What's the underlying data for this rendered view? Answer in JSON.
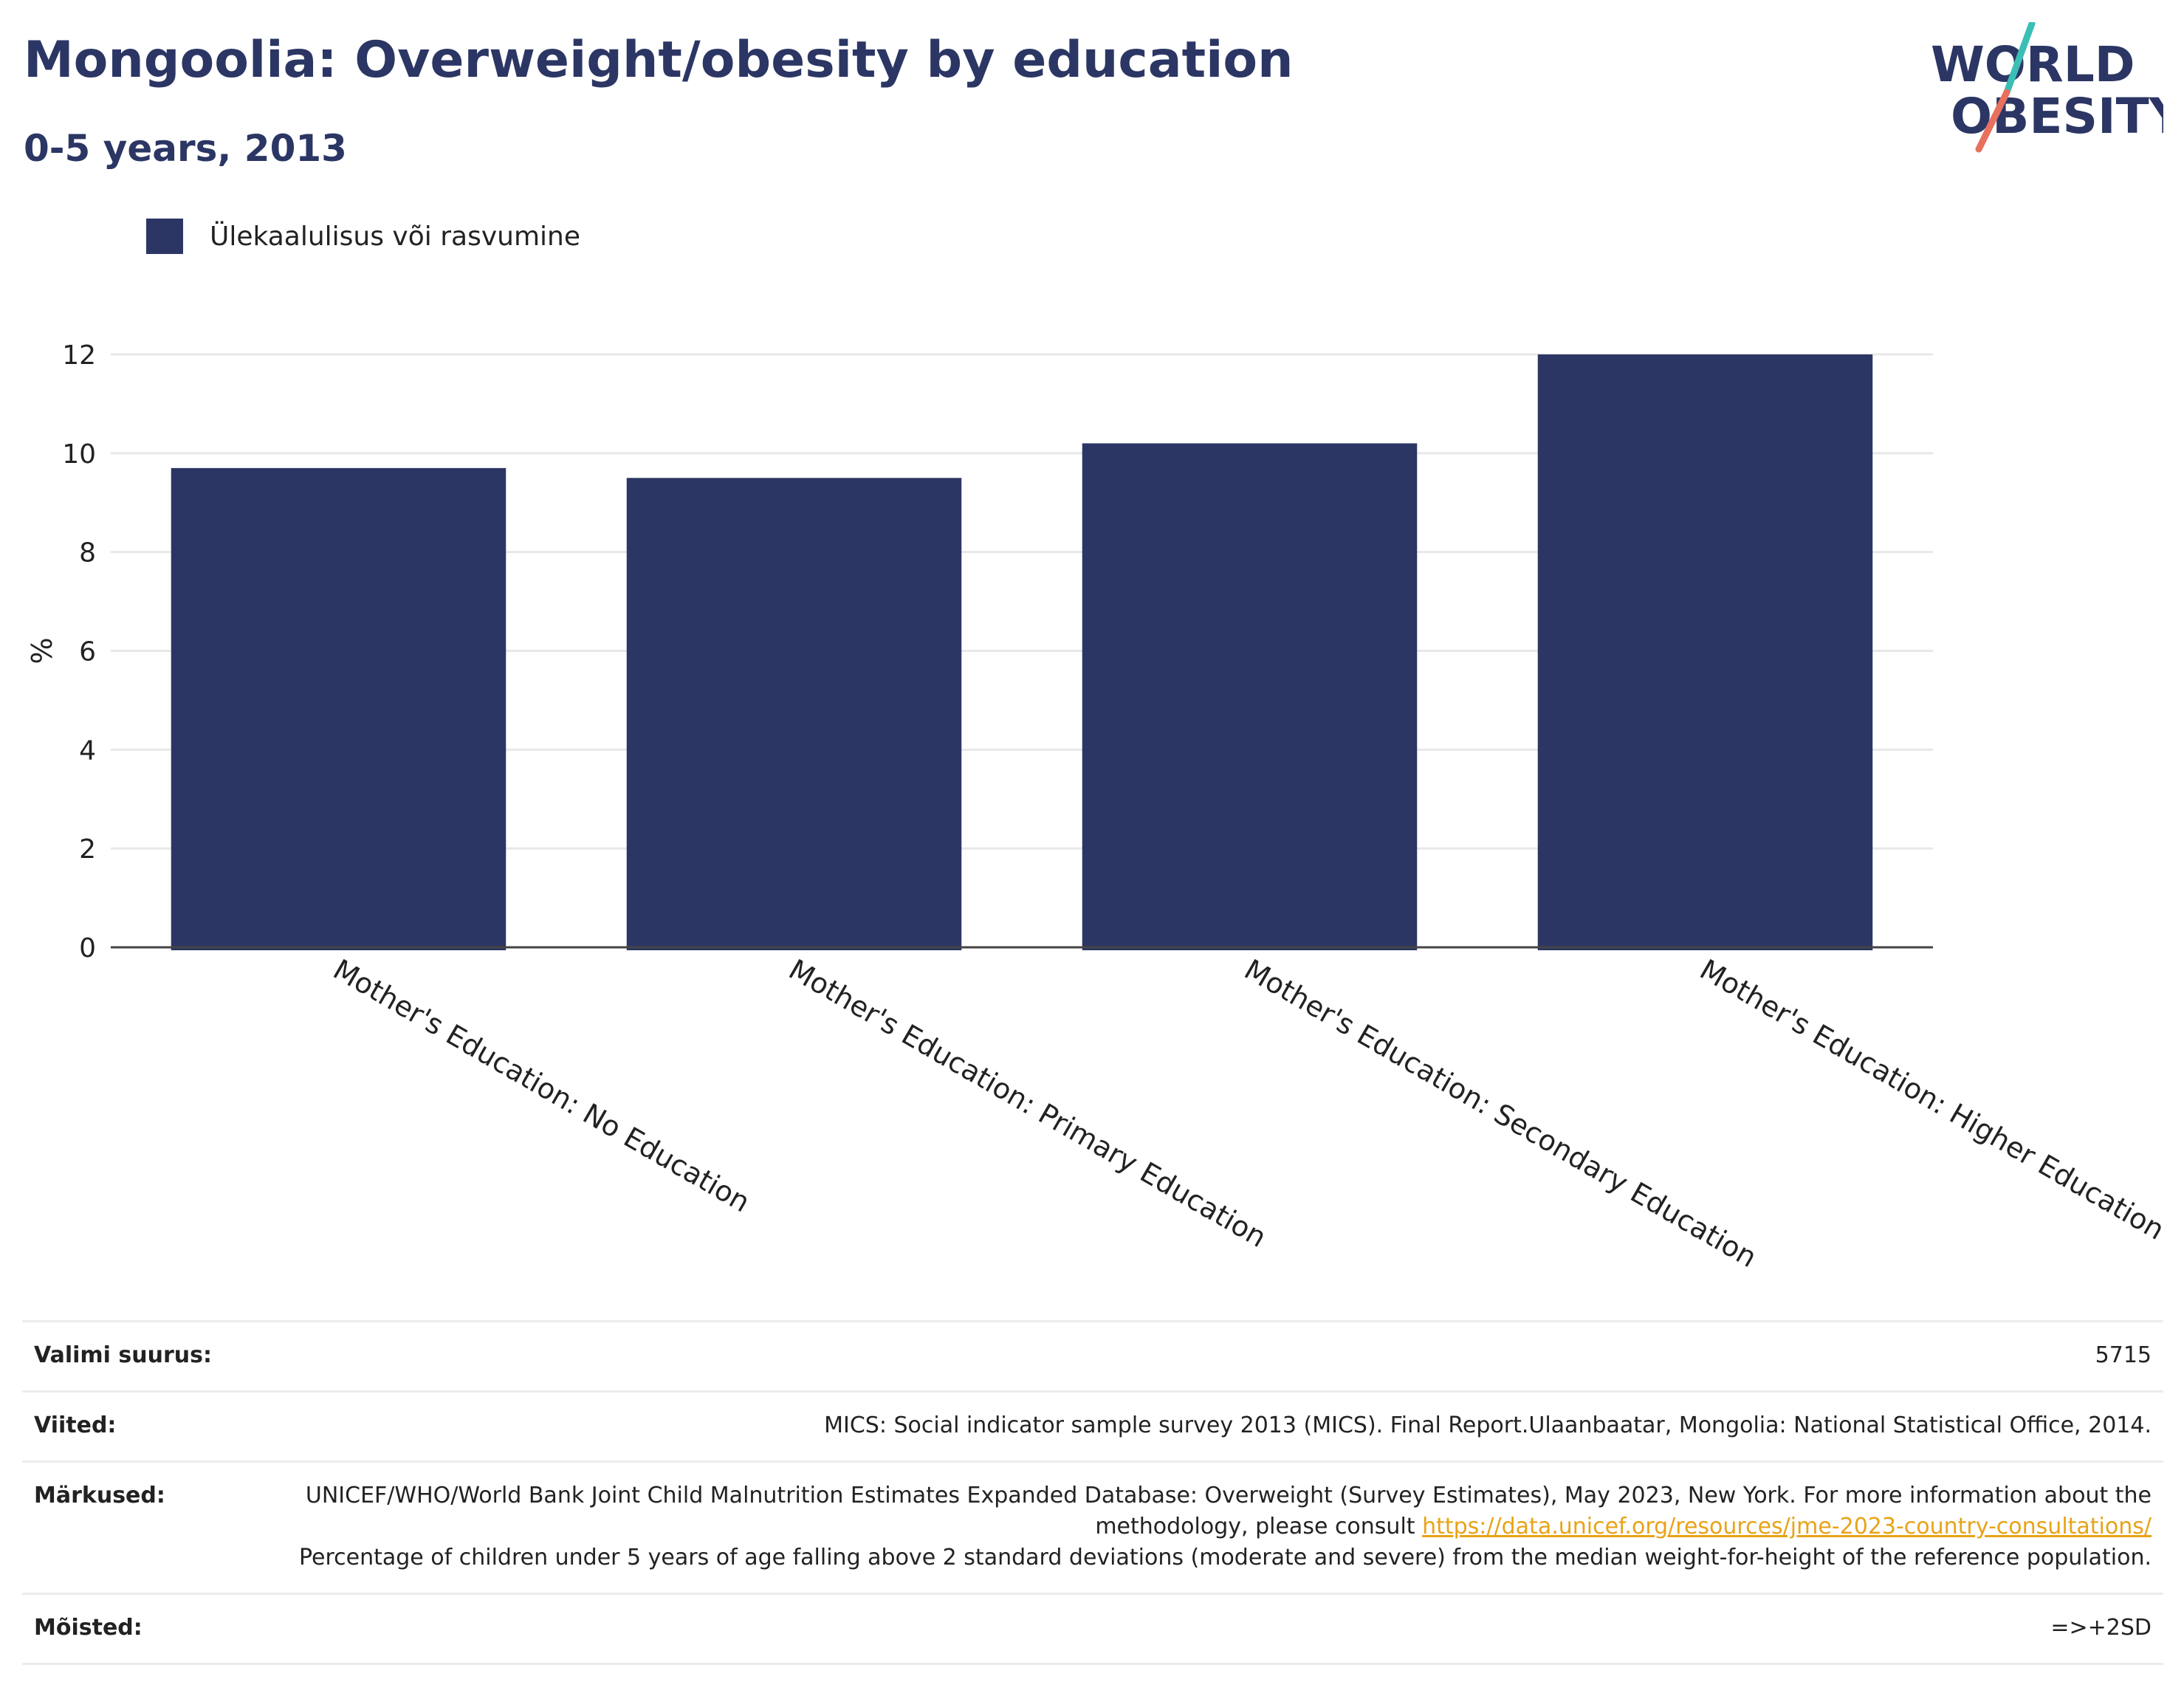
{
  "header": {
    "title": "Mongoolia: Overweight/obesity by education",
    "subtitle": "0-5 years, 2013"
  },
  "logo": {
    "line1": "WORLD",
    "line2": "OBESITY"
  },
  "legend": {
    "label": "Ülekaalulisus või rasvumine",
    "color": "#2b3664"
  },
  "chart_data": {
    "type": "bar",
    "categories": [
      "Mother's Education: No Education",
      "Mother's Education: Primary Education",
      "Mother's Education: Secondary Education",
      "Mother's Education: Higher Education"
    ],
    "series": [
      {
        "name": "Ülekaalulisus või rasvumine",
        "values": [
          9.7,
          9.5,
          10.2,
          12.0
        ]
      }
    ],
    "ylabel": "%",
    "ylim": [
      0,
      12
    ],
    "yticks": [
      0,
      2,
      4,
      6,
      8,
      10,
      12
    ],
    "grid": true,
    "legend_position": "top-left",
    "bar_color": "#2b3664"
  },
  "info": {
    "sample_size_label": "Valimi suurus:",
    "sample_size_value": "5715",
    "references_label": "Viited:",
    "references_value": "MICS: Social indicator sample survey 2013 (MICS). Final Report.Ulaanbaatar, Mongolia: National Statistical Office, 2014.",
    "notes_label": "Märkused:",
    "notes_text_1": "UNICEF/WHO/World Bank Joint Child Malnutrition Estimates Expanded Database: Overweight (Survey Estimates), May 2023, New York. For more information about the methodology, please consult",
    "notes_link": "https://data.unicef.org/resources/jme-2023-country-consultations/",
    "notes_text_2": "Percentage of children under 5 years of age falling above 2 standard deviations (moderate and severe) from the median weight-for-height of the reference population.",
    "definitions_label": "Mõisted:",
    "definitions_value": "=>+2SD"
  }
}
